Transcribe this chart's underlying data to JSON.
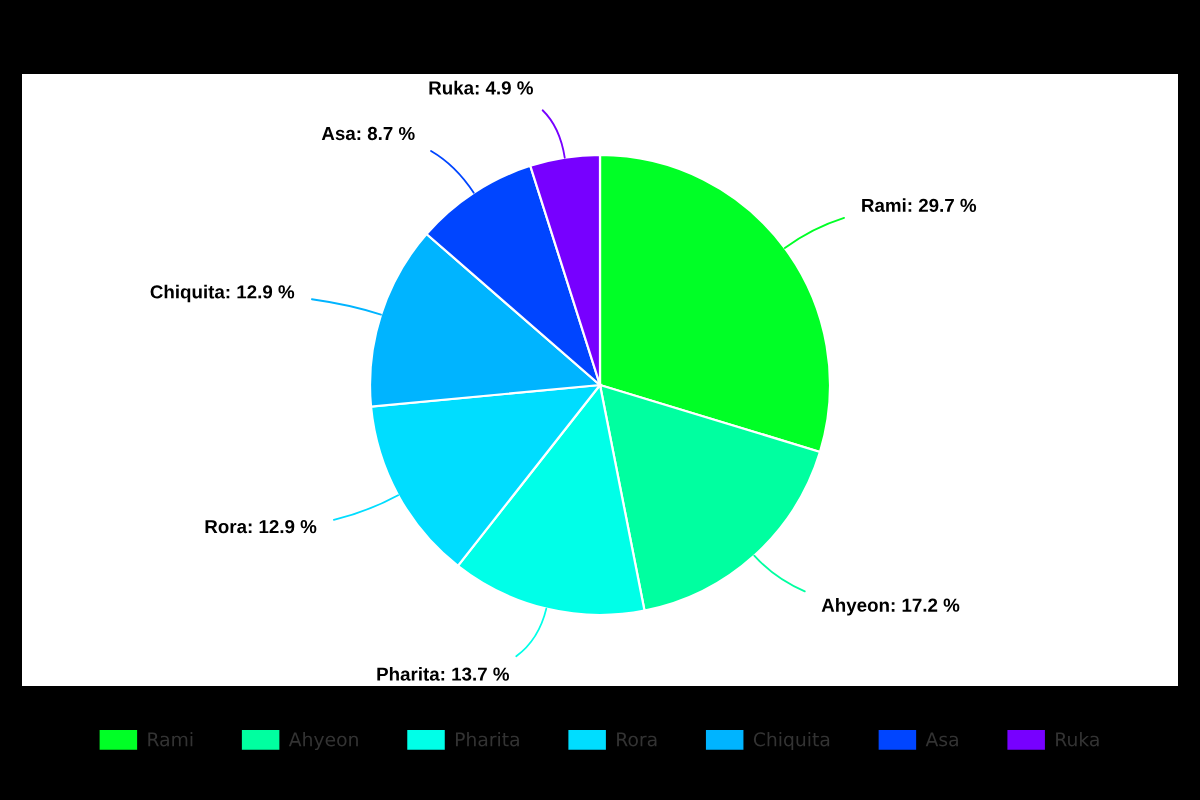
{
  "chart_data": {
    "type": "pie",
    "categories": [
      "Rami",
      "Ahyeon",
      "Pharita",
      "Rora",
      "Chiquita",
      "Asa",
      "Ruka"
    ],
    "values": [
      29.7,
      17.2,
      13.7,
      12.9,
      12.9,
      8.7,
      4.9
    ],
    "colors": [
      "#00ff26",
      "#00ffa0",
      "#00ffe8",
      "#00ddff",
      "#00b4ff",
      "#0045ff",
      "#7700ff"
    ],
    "value_labels": [
      "Rami: 29.7 %",
      "Ahyeon: 17.2 %",
      "Pharita: 13.7 %",
      "Rora: 12.9 %",
      "Chiquita: 12.9 %",
      "Asa: 8.7 %",
      "Ruka: 4.9 %"
    ],
    "legend": "bottom"
  }
}
